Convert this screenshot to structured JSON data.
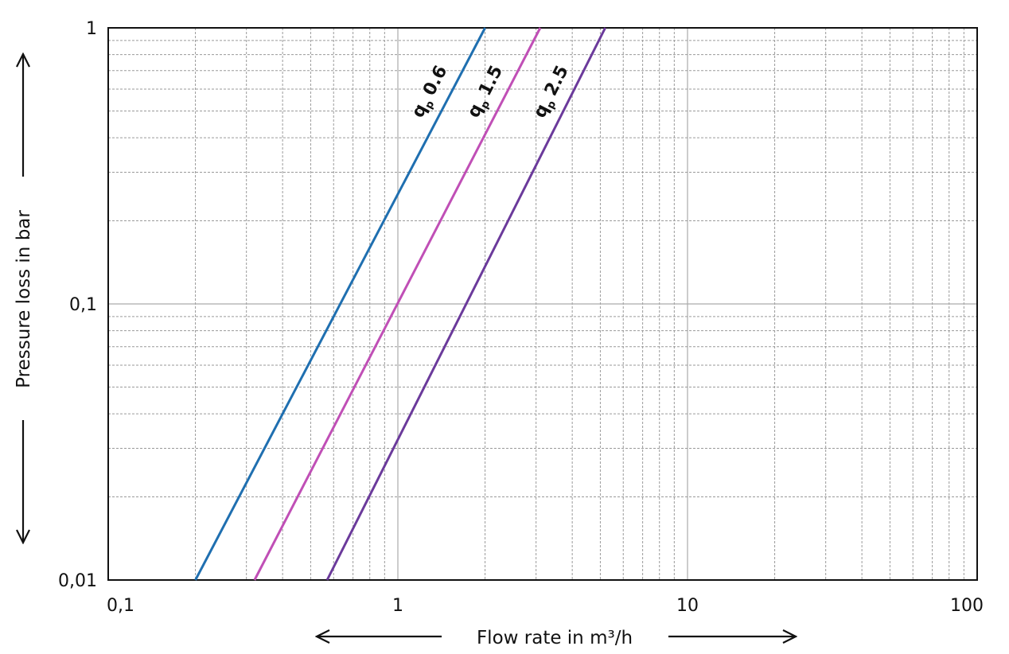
{
  "chart_data": {
    "type": "line",
    "xlabel": "Flow rate in m³/h",
    "ylabel": "Pressure loss in bar",
    "x_scale": "log",
    "y_scale": "log",
    "xlim": [
      0.1,
      100
    ],
    "ylim": [
      0.01,
      1
    ],
    "x_ticks": [
      {
        "value": 0.1,
        "label": "0,1"
      },
      {
        "value": 1,
        "label": "1"
      },
      {
        "value": 10,
        "label": "10"
      },
      {
        "value": 100,
        "label": "100"
      }
    ],
    "y_ticks": [
      {
        "value": 0.01,
        "label": "0,01"
      },
      {
        "value": 0.1,
        "label": "0,1"
      },
      {
        "value": 1,
        "label": "1"
      }
    ],
    "grid": true,
    "legend": "none",
    "series": [
      {
        "name": "qp 0.6",
        "label_main": "q",
        "label_sub": "p",
        "label_value": "0.6",
        "color": "#1f6fb0",
        "x": [
          0.2,
          2.0
        ],
        "y": [
          0.01,
          1
        ]
      },
      {
        "name": "qp 1.5",
        "label_main": "q",
        "label_sub": "p",
        "label_value": "1.5",
        "color": "#c04fb6",
        "x": [
          0.32,
          3.1
        ],
        "y": [
          0.01,
          1
        ]
      },
      {
        "name": "qp 2.5",
        "label_main": "q",
        "label_sub": "p",
        "label_value": "2.5",
        "color": "#6b3a9b",
        "x": [
          0.57,
          5.2
        ],
        "y": [
          0.01,
          1
        ]
      }
    ]
  }
}
